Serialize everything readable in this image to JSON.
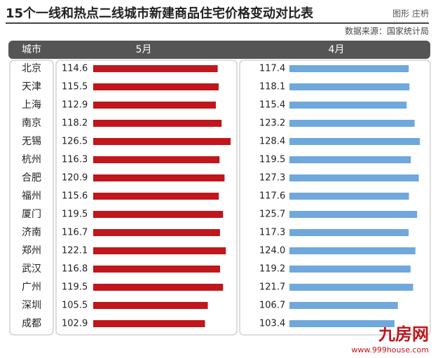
{
  "chart_data": {
    "type": "bar",
    "title": "15个一线和热点二线城市新建商品住宅价格变动对比表",
    "credit": "图形 庄枬",
    "source": "数据来源：国家统计局",
    "category_header": "城市",
    "categories": [
      "北京",
      "天津",
      "上海",
      "南京",
      "无锡",
      "杭州",
      "合肥",
      "福州",
      "厦门",
      "济南",
      "郑州",
      "武汉",
      "广州",
      "深圳",
      "成都"
    ],
    "series": [
      {
        "name": "5月",
        "color": "#c0161c",
        "values": [
          114.6,
          115.5,
          112.9,
          118.2,
          126.5,
          116.3,
          120.9,
          115.6,
          119.5,
          116.7,
          122.1,
          116.8,
          119.5,
          105.5,
          102.9
        ],
        "value_labels": [
          "114.6",
          "115.5",
          "112.9",
          "118.2",
          "126.5",
          "116.3",
          "120.9",
          "115.6",
          "119.5",
          "116.7",
          "122.1",
          "116.8",
          "119.5",
          "105.5",
          "102.9"
        ]
      },
      {
        "name": "4月",
        "color": "#6fa8dc",
        "values": [
          117.4,
          118.1,
          115.4,
          123.2,
          128.4,
          119.5,
          127.3,
          117.6,
          125.7,
          117.3,
          124.0,
          119.2,
          121.7,
          106.7,
          103.4
        ],
        "value_labels": [
          "117.4",
          "118.1",
          "115.4",
          "123.2",
          "128.4",
          "119.5",
          "127.3",
          "117.6",
          "125.7",
          "117.3",
          "124.0",
          "119.2",
          "121.7",
          "106.7",
          "103.4"
        ]
      }
    ]
  },
  "watermark": {
    "brand": "九房网",
    "url": "www.999house.com"
  }
}
